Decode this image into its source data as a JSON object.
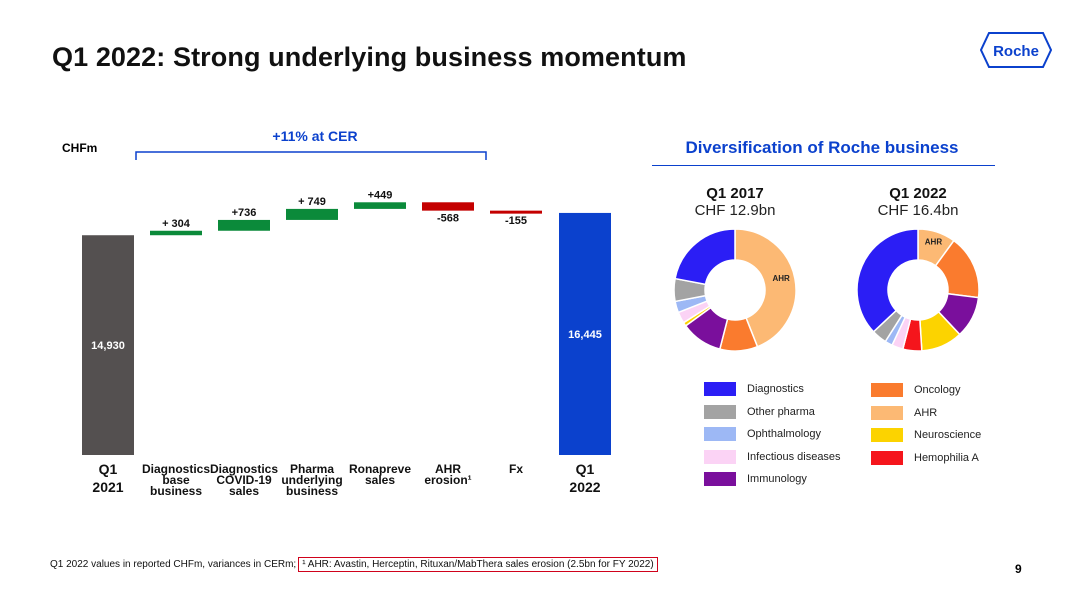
{
  "title": "Q1 2022: Strong underlying business momentum",
  "logo_text": "Roche",
  "footnote": {
    "main": "Q1 2022 values in reported CHFm, variances in CERm;",
    "boxed": "¹ AHR: Avastin, Herceptin, Rituxan/MabThera sales erosion (2.5bn for FY 2022)"
  },
  "page_number": "9",
  "colors": {
    "brand_blue": "#0b41cd",
    "green": "#0b8a3a",
    "red": "#c40000",
    "grey_bar": "#545050"
  },
  "chart_data": [
    {
      "type": "waterfall",
      "unit_label": "CHFm",
      "bracket_label": "+11% at CER",
      "categories": [
        [
          "Q1",
          "2021"
        ],
        [
          "Diagnostics",
          "base",
          "business"
        ],
        [
          "Diagnostics",
          "COVID-19",
          "sales"
        ],
        [
          "Pharma",
          "underlying",
          "business"
        ],
        [
          "Ronapreve",
          "sales"
        ],
        [
          "AHR",
          "erosion¹"
        ],
        [
          "Fx"
        ],
        [
          "Q1",
          "2022"
        ]
      ],
      "steps": [
        {
          "kind": "total",
          "value": 14930,
          "label": "14,930",
          "color": "#545050"
        },
        {
          "kind": "delta",
          "value": 304,
          "label": "+ 304",
          "color": "#0b8a3a"
        },
        {
          "kind": "delta",
          "value": 736,
          "label": "+736",
          "color": "#0b8a3a"
        },
        {
          "kind": "delta",
          "value": 749,
          "label": "+ 749",
          "color": "#0b8a3a"
        },
        {
          "kind": "delta",
          "value": 449,
          "label": "+449",
          "color": "#0b8a3a"
        },
        {
          "kind": "delta",
          "value": -568,
          "label": "-568",
          "color": "#c40000"
        },
        {
          "kind": "delta",
          "value": -155,
          "label": "-155",
          "color": "#c40000"
        },
        {
          "kind": "total",
          "value": 16445,
          "label": "16,445",
          "color": "#0b41cd"
        }
      ]
    },
    {
      "type": "pie",
      "title": "Diversification of Roche business",
      "charts": [
        {
          "heading": "Q1 2017",
          "subheading": "CHF 12.9bn",
          "slices": [
            {
              "name": "AHR",
              "value": 44,
              "label": "AHR"
            },
            {
              "name": "Oncology",
              "value": 10
            },
            {
              "name": "Immunology",
              "value": 11
            },
            {
              "name": "Neuroscience",
              "value": 1
            },
            {
              "name": "Infectious diseases",
              "value": 3
            },
            {
              "name": "Ophthalmology",
              "value": 3
            },
            {
              "name": "Other pharma",
              "value": 6
            },
            {
              "name": "Diagnostics",
              "value": 22
            }
          ]
        },
        {
          "heading": "Q1 2022",
          "subheading": "CHF 16.4bn",
          "slices": [
            {
              "name": "AHR",
              "value": 10,
              "label": "AHR"
            },
            {
              "name": "Oncology",
              "value": 17
            },
            {
              "name": "Immunology",
              "value": 11
            },
            {
              "name": "Neuroscience",
              "value": 11
            },
            {
              "name": "Hemophilia A",
              "value": 5
            },
            {
              "name": "Infectious diseases",
              "value": 3
            },
            {
              "name": "Ophthalmology",
              "value": 2
            },
            {
              "name": "Other pharma",
              "value": 4
            },
            {
              "name": "Diagnostics",
              "value": 37
            }
          ]
        }
      ],
      "legend": [
        {
          "name": "Diagnostics",
          "color": "#2b1ef5"
        },
        {
          "name": "Other pharma",
          "color": "#a3a3a3"
        },
        {
          "name": "Ophthalmology",
          "color": "#9db8f5"
        },
        {
          "name": "Infectious diseases",
          "color": "#fbd3f5"
        },
        {
          "name": "Immunology",
          "color": "#7a0f9c"
        },
        {
          "name": "Oncology",
          "color": "#fa7b2e"
        },
        {
          "name": "AHR",
          "color": "#fcb974"
        },
        {
          "name": "Neuroscience",
          "color": "#fcd300"
        },
        {
          "name": "Hemophilia A",
          "color": "#f5151c"
        }
      ]
    }
  ]
}
